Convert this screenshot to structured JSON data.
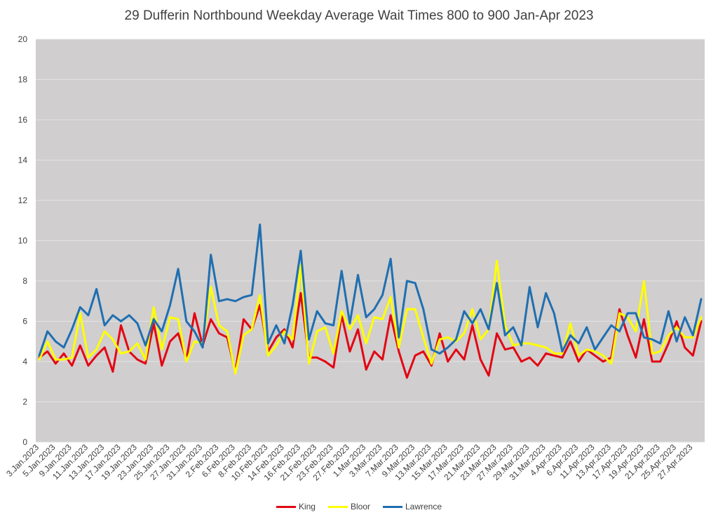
{
  "chart_data": {
    "type": "line",
    "title": "29 Dufferin Northbound Weekday Average Wait Times 800 to 900 Jan-Apr 2023",
    "xlabel": "",
    "ylabel": "",
    "ylim": [
      0,
      20
    ],
    "yticks": [
      0,
      2,
      4,
      6,
      8,
      10,
      12,
      14,
      16,
      18,
      20
    ],
    "grid": true,
    "legend_position": "bottom",
    "categories": [
      "3.Jan.2023",
      "4.Jan.2023",
      "5.Jan.2023",
      "6.Jan.2023",
      "9.Jan.2023",
      "10.Jan.2023",
      "11.Jan.2023",
      "12.Jan.2023",
      "13.Jan.2023",
      "16.Jan.2023",
      "17.Jan.2023",
      "18.Jan.2023",
      "19.Jan.2023",
      "20.Jan.2023",
      "23.Jan.2023",
      "24.Jan.2023",
      "25.Jan.2023",
      "26.Jan.2023",
      "27.Jan.2023",
      "30.Jan.2023",
      "31.Jan.2023",
      "1.Feb.2023",
      "2.Feb.2023",
      "3.Feb.2023",
      "6.Feb.2023",
      "7.Feb.2023",
      "8.Feb.2023",
      "9.Feb.2023",
      "10.Feb.2023",
      "13.Feb.2023",
      "14.Feb.2023",
      "15.Feb.2023",
      "16.Feb.2023",
      "17.Feb.2023",
      "21.Feb.2023",
      "22.Feb.2023",
      "23.Feb.2023",
      "24.Feb.2023",
      "27.Feb.2023",
      "28.Feb.2023",
      "1.Mar.2023",
      "2.Mar.2023",
      "3.Mar.2023",
      "6.Mar.2023",
      "7.Mar.2023",
      "8.Mar.2023",
      "9.Mar.2023",
      "10.Mar.2023",
      "13.Mar.2023",
      "14.Mar.2023",
      "15.Mar.2023",
      "16.Mar.2023",
      "17.Mar.2023",
      "20.Mar.2023",
      "21.Mar.2023",
      "22.Mar.2023",
      "23.Mar.2023",
      "24.Mar.2023",
      "27.Mar.2023",
      "28.Mar.2023",
      "29.Mar.2023",
      "30.Mar.2023",
      "31.Mar.2023",
      "3.Apr.2023",
      "4.Apr.2023",
      "5.Apr.2023",
      "6.Apr.2023",
      "10.Apr.2023",
      "11.Apr.2023",
      "12.Apr.2023",
      "13.Apr.2023",
      "14.Apr.2023",
      "17.Apr.2023",
      "18.Apr.2023",
      "19.Apr.2023",
      "20.Apr.2023",
      "21.Apr.2023",
      "24.Apr.2023",
      "25.Apr.2023",
      "26.Apr.2023",
      "27.Apr.2023",
      "28.Apr.2023"
    ],
    "xtick_labels": [
      "3.Jan.2023",
      "5.Jan.2023",
      "9.Jan.2023",
      "11.Jan.2023",
      "13.Jan.2023",
      "17.Jan.2023",
      "19.Jan.2023",
      "23.Jan.2023",
      "25.Jan.2023",
      "27.Jan.2023",
      "31.Jan.2023",
      "2.Feb.2023",
      "6.Feb.2023",
      "8.Feb.2023",
      "10.Feb.2023",
      "14.Feb.2023",
      "16.Feb.2023",
      "21.Feb.2023",
      "23.Feb.2023",
      "27.Feb.2023",
      "1.Mar.2023",
      "3.Mar.2023",
      "7.Mar.2023",
      "9.Mar.2023",
      "13.Mar.2023",
      "15.Mar.2023",
      "17.Mar.2023",
      "21.Mar.2023",
      "23.Mar.2023",
      "27.Mar.2023",
      "29.Mar.2023",
      "31.Mar.2023",
      "4.Apr.2023",
      "6.Apr.2023",
      "11.Apr.2023",
      "13.Apr.2023",
      "17.Apr.2023",
      "19.Apr.2023",
      "21.Apr.2023",
      "25.Apr.2023",
      "27.Apr.2023"
    ],
    "series": [
      {
        "name": "King",
        "color": "#e30613",
        "values": [
          4.2,
          4.5,
          3.9,
          4.4,
          3.8,
          4.8,
          3.8,
          4.3,
          4.7,
          3.5,
          5.8,
          4.5,
          4.1,
          3.9,
          5.9,
          3.8,
          5.0,
          5.4,
          4.1,
          6.4,
          4.8,
          6.1,
          5.4,
          5.2,
          3.5,
          6.1,
          5.6,
          6.8,
          4.5,
          5.2,
          5.6,
          4.7,
          7.4,
          4.2,
          4.2,
          4.0,
          3.7,
          6.3,
          4.5,
          5.6,
          3.6,
          4.5,
          4.1,
          6.3,
          4.5,
          3.2,
          4.3,
          4.5,
          3.8,
          5.4,
          4.0,
          4.6,
          4.1,
          5.8,
          4.1,
          3.3,
          5.4,
          4.6,
          4.7,
          4.0,
          4.2,
          3.8,
          4.4,
          4.3,
          4.2,
          5.0,
          4.0,
          4.6,
          4.3,
          4.0,
          4.2,
          6.6,
          5.3,
          4.2,
          6.1,
          4.0,
          4.0,
          4.9,
          6.0,
          4.7,
          4.3,
          6.0
        ]
      },
      {
        "name": "Bloor",
        "color": "#ffff00",
        "values": [
          4.1,
          5.0,
          4.1,
          4.1,
          4.2,
          6.4,
          4.2,
          4.6,
          5.5,
          5.1,
          4.4,
          4.5,
          4.9,
          4.1,
          6.7,
          4.6,
          6.2,
          6.1,
          4.0,
          5.0,
          4.9,
          7.7,
          5.8,
          5.5,
          3.4,
          5.3,
          5.6,
          7.3,
          4.3,
          4.8,
          5.5,
          5.1,
          8.8,
          3.9,
          5.5,
          5.7,
          4.4,
          6.5,
          5.6,
          6.3,
          4.9,
          6.2,
          6.1,
          7.2,
          4.7,
          6.6,
          6.6,
          5.2,
          3.9,
          5.1,
          5.2,
          5.0,
          5.4,
          6.6,
          5.1,
          5.6,
          9.0,
          5.8,
          4.8,
          4.9,
          4.9,
          4.8,
          4.7,
          4.4,
          4.4,
          5.9,
          4.3,
          4.6,
          4.5,
          4.3,
          3.9,
          6.4,
          6.2,
          5.5,
          8.0,
          4.4,
          4.5,
          5.3,
          5.7,
          5.2,
          5.2,
          6.2
        ]
      },
      {
        "name": "Lawrence",
        "color": "#1f6fb1",
        "values": [
          4.3,
          5.5,
          5.0,
          4.7,
          5.6,
          6.7,
          6.3,
          7.6,
          5.8,
          6.3,
          6.0,
          6.3,
          5.9,
          4.8,
          6.1,
          5.5,
          6.8,
          8.6,
          6.0,
          5.5,
          4.7,
          9.3,
          7.0,
          7.1,
          7.0,
          7.2,
          7.3,
          10.8,
          4.9,
          5.8,
          4.9,
          6.8,
          9.5,
          5.1,
          6.5,
          5.9,
          5.8,
          8.5,
          5.9,
          8.3,
          6.2,
          6.6,
          7.3,
          9.1,
          5.2,
          8.0,
          7.9,
          6.6,
          4.6,
          4.4,
          4.7,
          5.1,
          6.5,
          5.9,
          6.6,
          5.6,
          7.9,
          5.3,
          5.7,
          4.8,
          7.7,
          5.7,
          7.4,
          6.4,
          4.5,
          5.3,
          4.9,
          5.7,
          4.6,
          5.2,
          5.8,
          5.5,
          6.4,
          6.4,
          5.2,
          5.1,
          4.9,
          6.5,
          5.0,
          6.2,
          5.3,
          7.1
        ]
      }
    ]
  }
}
